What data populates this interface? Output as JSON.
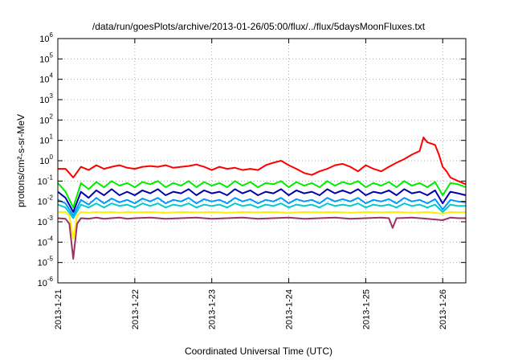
{
  "chart_data": {
    "type": "line",
    "title": "/data/run/goesPlots/archive/2013-01-26/05:00/flux/../flux/5daysMoonFluxes.txt",
    "xlabel": "Coordinated Universal Time (UTC)",
    "ylabel": "protons/cm²-s-sr-MeV",
    "yscale": "log",
    "ylim": [
      1e-06,
      1000000.0
    ],
    "xlim": [
      0,
      5.3
    ],
    "grid": true,
    "y_ticks": [
      {
        "value": -6,
        "base": "10",
        "exp": "-6"
      },
      {
        "value": -5,
        "base": "10",
        "exp": "-5"
      },
      {
        "value": -4,
        "base": "10",
        "exp": "-4"
      },
      {
        "value": -3,
        "base": "10",
        "exp": "-3"
      },
      {
        "value": -2,
        "base": "10",
        "exp": "-2"
      },
      {
        "value": -1,
        "base": "10",
        "exp": "-1"
      },
      {
        "value": 0,
        "base": "10",
        "exp": "0"
      },
      {
        "value": 1,
        "base": "10",
        "exp": "1"
      },
      {
        "value": 2,
        "base": "10",
        "exp": "2"
      },
      {
        "value": 3,
        "base": "10",
        "exp": "3"
      },
      {
        "value": 4,
        "base": "10",
        "exp": "4"
      },
      {
        "value": 5,
        "base": "10",
        "exp": "5"
      },
      {
        "value": 6,
        "base": "10",
        "exp": "6"
      }
    ],
    "x_ticks": [
      {
        "value": 0,
        "label": "2013-1-21"
      },
      {
        "value": 1,
        "label": "2013-1-22"
      },
      {
        "value": 2,
        "label": "2013-1-23"
      },
      {
        "value": 3,
        "label": "2013-1-24"
      },
      {
        "value": 4,
        "label": "2013-1-25"
      },
      {
        "value": 5,
        "label": "2013-1-26"
      }
    ],
    "series": [
      {
        "color": "#ff0000",
        "x": [
          0.0,
          0.1,
          0.2,
          0.3,
          0.4,
          0.5,
          0.6,
          0.7,
          0.8,
          0.9,
          1.0,
          1.1,
          1.2,
          1.3,
          1.4,
          1.5,
          1.6,
          1.7,
          1.8,
          1.9,
          2.0,
          2.1,
          2.2,
          2.3,
          2.4,
          2.5,
          2.6,
          2.7,
          2.8,
          2.9,
          3.0,
          3.1,
          3.2,
          3.3,
          3.4,
          3.5,
          3.6,
          3.7,
          3.8,
          3.9,
          4.0,
          4.1,
          4.2,
          4.3,
          4.4,
          4.5,
          4.6,
          4.7,
          4.75,
          4.8,
          4.9,
          4.95,
          5.0,
          5.05,
          5.1,
          5.2,
          5.3
        ],
        "y": [
          0.4,
          0.4,
          0.15,
          0.5,
          0.35,
          0.6,
          0.4,
          0.5,
          0.6,
          0.45,
          0.4,
          0.5,
          0.55,
          0.5,
          0.6,
          0.45,
          0.5,
          0.55,
          0.65,
          0.5,
          0.35,
          0.5,
          0.4,
          0.45,
          0.35,
          0.4,
          0.35,
          0.6,
          0.8,
          1.0,
          0.6,
          0.4,
          0.25,
          0.2,
          0.3,
          0.4,
          0.6,
          0.7,
          0.5,
          0.3,
          0.6,
          0.4,
          0.3,
          0.5,
          0.8,
          1.2,
          2.0,
          3.0,
          14,
          8.0,
          6.0,
          2.0,
          0.5,
          0.3,
          0.15,
          0.1,
          0.07
        ]
      },
      {
        "color": "#00ee00",
        "x": [
          0.0,
          0.1,
          0.2,
          0.3,
          0.4,
          0.5,
          0.6,
          0.7,
          0.8,
          0.9,
          1.0,
          1.1,
          1.2,
          1.3,
          1.4,
          1.5,
          1.6,
          1.7,
          1.8,
          1.9,
          2.0,
          2.1,
          2.2,
          2.3,
          2.4,
          2.5,
          2.6,
          2.7,
          2.8,
          2.9,
          3.0,
          3.1,
          3.2,
          3.3,
          3.4,
          3.5,
          3.6,
          3.7,
          3.8,
          3.9,
          4.0,
          4.1,
          4.2,
          4.3,
          4.4,
          4.5,
          4.6,
          4.7,
          4.8,
          4.9,
          5.0,
          5.1,
          5.2,
          5.3
        ],
        "y": [
          0.08,
          0.03,
          0.005,
          0.08,
          0.04,
          0.09,
          0.05,
          0.1,
          0.06,
          0.08,
          0.05,
          0.09,
          0.07,
          0.1,
          0.05,
          0.08,
          0.06,
          0.1,
          0.05,
          0.09,
          0.06,
          0.08,
          0.05,
          0.1,
          0.06,
          0.09,
          0.05,
          0.08,
          0.07,
          0.1,
          0.05,
          0.09,
          0.06,
          0.08,
          0.05,
          0.1,
          0.06,
          0.09,
          0.07,
          0.1,
          0.05,
          0.08,
          0.06,
          0.09,
          0.05,
          0.1,
          0.06,
          0.08,
          0.05,
          0.09,
          0.02,
          0.08,
          0.07,
          0.05
        ]
      },
      {
        "color": "#0000aa",
        "x": [
          0.0,
          0.1,
          0.2,
          0.3,
          0.4,
          0.5,
          0.6,
          0.7,
          0.8,
          0.9,
          1.0,
          1.1,
          1.2,
          1.3,
          1.4,
          1.5,
          1.6,
          1.7,
          1.8,
          1.9,
          2.0,
          2.1,
          2.2,
          2.3,
          2.4,
          2.5,
          2.6,
          2.7,
          2.8,
          2.9,
          3.0,
          3.1,
          3.2,
          3.3,
          3.4,
          3.5,
          3.6,
          3.7,
          3.8,
          3.9,
          4.0,
          4.1,
          4.2,
          4.3,
          4.4,
          4.5,
          4.6,
          4.7,
          4.8,
          4.9,
          5.0,
          5.1,
          5.2,
          5.3
        ],
        "y": [
          0.03,
          0.015,
          0.003,
          0.03,
          0.015,
          0.035,
          0.02,
          0.04,
          0.02,
          0.03,
          0.02,
          0.035,
          0.025,
          0.04,
          0.02,
          0.03,
          0.025,
          0.04,
          0.02,
          0.035,
          0.025,
          0.03,
          0.02,
          0.04,
          0.025,
          0.035,
          0.02,
          0.03,
          0.025,
          0.04,
          0.02,
          0.035,
          0.025,
          0.03,
          0.02,
          0.04,
          0.025,
          0.035,
          0.025,
          0.04,
          0.02,
          0.03,
          0.025,
          0.035,
          0.02,
          0.04,
          0.025,
          0.03,
          0.02,
          0.035,
          0.008,
          0.03,
          0.025,
          0.02
        ]
      },
      {
        "color": "#0099ff",
        "x": [
          0.0,
          0.1,
          0.2,
          0.3,
          0.4,
          0.5,
          0.6,
          0.7,
          0.8,
          0.9,
          1.0,
          1.1,
          1.2,
          1.3,
          1.4,
          1.5,
          1.6,
          1.7,
          1.8,
          1.9,
          2.0,
          2.1,
          2.2,
          2.3,
          2.4,
          2.5,
          2.6,
          2.7,
          2.8,
          2.9,
          3.0,
          3.1,
          3.2,
          3.3,
          3.4,
          3.5,
          3.6,
          3.7,
          3.8,
          3.9,
          4.0,
          4.1,
          4.2,
          4.3,
          4.4,
          4.5,
          4.6,
          4.7,
          4.8,
          4.9,
          5.0,
          5.1,
          5.2,
          5.3
        ],
        "y": [
          0.012,
          0.008,
          0.002,
          0.012,
          0.007,
          0.015,
          0.008,
          0.014,
          0.009,
          0.012,
          0.008,
          0.014,
          0.01,
          0.015,
          0.008,
          0.012,
          0.01,
          0.015,
          0.008,
          0.013,
          0.01,
          0.012,
          0.008,
          0.015,
          0.01,
          0.013,
          0.008,
          0.012,
          0.01,
          0.015,
          0.008,
          0.013,
          0.01,
          0.012,
          0.008,
          0.015,
          0.01,
          0.013,
          0.01,
          0.015,
          0.008,
          0.012,
          0.01,
          0.013,
          0.008,
          0.015,
          0.01,
          0.012,
          0.008,
          0.013,
          0.004,
          0.012,
          0.01,
          0.009
        ]
      },
      {
        "color": "#00cccc",
        "x": [
          0.0,
          0.1,
          0.2,
          0.3,
          0.4,
          0.5,
          0.6,
          0.7,
          0.8,
          0.9,
          1.0,
          1.1,
          1.2,
          1.3,
          1.4,
          1.5,
          1.6,
          1.7,
          1.8,
          1.9,
          2.0,
          2.1,
          2.2,
          2.3,
          2.4,
          2.5,
          2.6,
          2.7,
          2.8,
          2.9,
          3.0,
          3.1,
          3.2,
          3.3,
          3.4,
          3.5,
          3.6,
          3.7,
          3.8,
          3.9,
          4.0,
          4.1,
          4.2,
          4.3,
          4.4,
          4.5,
          4.6,
          4.7,
          4.8,
          4.9,
          5.0,
          5.1,
          5.2,
          5.3
        ],
        "y": [
          0.007,
          0.005,
          0.0015,
          0.007,
          0.005,
          0.008,
          0.005,
          0.008,
          0.006,
          0.007,
          0.005,
          0.008,
          0.006,
          0.008,
          0.005,
          0.007,
          0.006,
          0.008,
          0.005,
          0.007,
          0.006,
          0.007,
          0.005,
          0.008,
          0.006,
          0.007,
          0.005,
          0.007,
          0.006,
          0.008,
          0.005,
          0.007,
          0.006,
          0.007,
          0.005,
          0.008,
          0.006,
          0.007,
          0.006,
          0.008,
          0.005,
          0.007,
          0.006,
          0.007,
          0.005,
          0.008,
          0.006,
          0.007,
          0.005,
          0.007,
          0.003,
          0.007,
          0.006,
          0.006
        ]
      },
      {
        "color": "#ffee00",
        "x": [
          0.0,
          0.1,
          0.15,
          0.2,
          0.25,
          0.3,
          0.4,
          0.5,
          0.6,
          0.7,
          0.8,
          0.9,
          1.0,
          1.2,
          1.4,
          1.6,
          1.8,
          2.0,
          2.2,
          2.4,
          2.6,
          2.8,
          3.0,
          3.2,
          3.4,
          3.6,
          3.8,
          4.0,
          4.2,
          4.4,
          4.6,
          4.8,
          5.0,
          5.1,
          5.2,
          5.3
        ],
        "y": [
          0.003,
          0.003,
          0.002,
          0.00015,
          0.002,
          0.003,
          0.0028,
          0.003,
          0.0029,
          0.003,
          0.0028,
          0.003,
          0.0029,
          0.003,
          0.0028,
          0.003,
          0.0029,
          0.003,
          0.0028,
          0.003,
          0.0029,
          0.003,
          0.0028,
          0.003,
          0.0029,
          0.003,
          0.0028,
          0.003,
          0.0029,
          0.003,
          0.0028,
          0.003,
          0.0025,
          0.003,
          0.0029,
          0.003
        ]
      },
      {
        "color": "#993366",
        "x": [
          0.0,
          0.1,
          0.15,
          0.2,
          0.25,
          0.3,
          0.4,
          0.5,
          0.6,
          0.7,
          0.8,
          0.9,
          1.0,
          1.2,
          1.4,
          1.6,
          1.8,
          2.0,
          2.2,
          2.4,
          2.6,
          2.8,
          3.0,
          3.2,
          3.4,
          3.6,
          3.8,
          4.0,
          4.2,
          4.3,
          4.35,
          4.4,
          4.6,
          4.8,
          5.0,
          5.1,
          5.2,
          5.3
        ],
        "y": [
          0.0015,
          0.0014,
          0.0008,
          1.5e-05,
          0.0008,
          0.0015,
          0.0014,
          0.0016,
          0.0014,
          0.0015,
          0.0016,
          0.0014,
          0.0015,
          0.0016,
          0.0014,
          0.0015,
          0.0016,
          0.0014,
          0.0015,
          0.0016,
          0.0014,
          0.0015,
          0.0016,
          0.0014,
          0.0015,
          0.0016,
          0.0014,
          0.0015,
          0.0016,
          0.0015,
          0.0005,
          0.0015,
          0.0016,
          0.0014,
          0.0012,
          0.0016,
          0.0015,
          0.0015
        ]
      }
    ]
  }
}
